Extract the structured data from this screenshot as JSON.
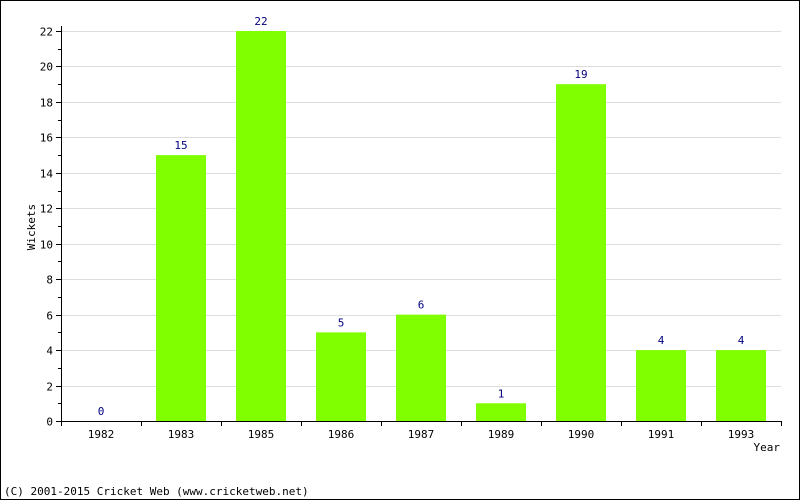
{
  "chart_data": {
    "type": "bar",
    "categories": [
      "1982",
      "1983",
      "1985",
      "1986",
      "1987",
      "1989",
      "1990",
      "1991",
      "1993"
    ],
    "values": [
      0,
      15,
      22,
      5,
      6,
      1,
      19,
      4,
      4
    ],
    "data_labels": [
      "0",
      "15",
      "22",
      "5",
      "6",
      "1",
      "19",
      "4",
      "4"
    ],
    "title": "",
    "xlabel": "Year",
    "ylabel": "Wickets",
    "ylim": [
      0,
      22
    ],
    "yticks": [
      0,
      2,
      4,
      6,
      8,
      10,
      12,
      14,
      16,
      18,
      20,
      22
    ],
    "grid": "horizontal",
    "colors": {
      "bar": "#7FFF00",
      "data_label": "#000080",
      "grid": "#dddddd",
      "axis": "#000000"
    }
  },
  "footer": {
    "copyright": "(C) 2001-2015 Cricket Web (www.cricketweb.net)"
  }
}
